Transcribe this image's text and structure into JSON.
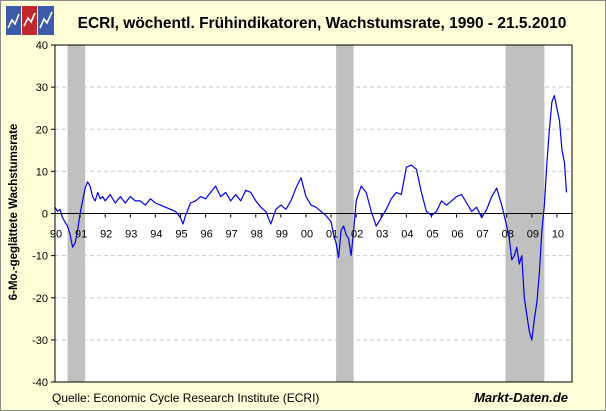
{
  "colors": {
    "background": "#fefed9",
    "plot_background": "#ffffff",
    "recession_shading": "#c0c0c0",
    "series_line": "#0000ee",
    "grid": "#c8c8c8",
    "logo_red": "#c1272d",
    "logo_blue": "#3b5ba9"
  },
  "logo": {
    "icon": "market-data-logo-icon"
  },
  "footer": {
    "source": "Quelle: Economic Cycle Research Institute (ECRI)",
    "brand": "Markt-Daten.de"
  },
  "chart_data": {
    "type": "line",
    "title": "ECRI, wöchentl. Frühindikatoren, Wachstumsrate, 1990 - 21.5.2010",
    "xlabel": "",
    "ylabel": "6-Mo.-geglättete Wachstumsrate",
    "xlim": [
      1990.0,
      2010.6
    ],
    "ylim": [
      -40,
      40
    ],
    "y_ticks": [
      -40,
      -30,
      -20,
      -10,
      0,
      10,
      20,
      30,
      40
    ],
    "x_ticks": [
      {
        "x": 1990,
        "label": "90"
      },
      {
        "x": 1991,
        "label": "91"
      },
      {
        "x": 1992,
        "label": "92"
      },
      {
        "x": 1993,
        "label": "93"
      },
      {
        "x": 1994,
        "label": "94"
      },
      {
        "x": 1995,
        "label": "95"
      },
      {
        "x": 1996,
        "label": "96"
      },
      {
        "x": 1997,
        "label": "97"
      },
      {
        "x": 1998,
        "label": "98"
      },
      {
        "x": 1999,
        "label": "99"
      },
      {
        "x": 2000,
        "label": "00"
      },
      {
        "x": 2001,
        "label": "01"
      },
      {
        "x": 2002,
        "label": "02"
      },
      {
        "x": 2003,
        "label": "03"
      },
      {
        "x": 2004,
        "label": "04"
      },
      {
        "x": 2005,
        "label": "05"
      },
      {
        "x": 2006,
        "label": "06"
      },
      {
        "x": 2007,
        "label": "07"
      },
      {
        "x": 2008,
        "label": "08"
      },
      {
        "x": 2009,
        "label": "09"
      },
      {
        "x": 2010,
        "label": "10"
      }
    ],
    "grid": true,
    "legend": "none",
    "recession_bands": [
      [
        1990.5,
        1991.2
      ],
      [
        2001.2,
        2001.9
      ],
      [
        2007.95,
        2009.5
      ]
    ],
    "series": [
      {
        "x": [
          1990.0,
          1990.1,
          1990.2,
          1990.3,
          1990.4,
          1990.5,
          1990.6,
          1990.7,
          1990.8,
          1990.9,
          1991.0,
          1991.1,
          1991.2,
          1991.3,
          1991.4,
          1991.5,
          1991.6,
          1991.7,
          1991.8,
          1991.9,
          1992.0,
          1992.2,
          1992.4,
          1992.6,
          1992.8,
          1993.0,
          1993.2,
          1993.4,
          1993.6,
          1993.8,
          1994.0,
          1994.2,
          1994.4,
          1994.6,
          1994.8,
          1995.0,
          1995.1,
          1995.2,
          1995.4,
          1995.6,
          1995.8,
          1996.0,
          1996.2,
          1996.4,
          1996.6,
          1996.8,
          1997.0,
          1997.2,
          1997.4,
          1997.6,
          1997.8,
          1998.0,
          1998.2,
          1998.4,
          1998.6,
          1998.8,
          1999.0,
          1999.2,
          1999.4,
          1999.6,
          1999.8,
          2000.0,
          2000.2,
          2000.4,
          2000.6,
          2000.8,
          2001.0,
          2001.1,
          2001.2,
          2001.3,
          2001.4,
          2001.5,
          2001.6,
          2001.7,
          2001.8,
          2001.9,
          2002.0,
          2002.2,
          2002.4,
          2002.6,
          2002.8,
          2003.0,
          2003.2,
          2003.4,
          2003.6,
          2003.8,
          2004.0,
          2004.2,
          2004.4,
          2004.6,
          2004.8,
          2005.0,
          2005.2,
          2005.4,
          2005.6,
          2005.8,
          2006.0,
          2006.2,
          2006.4,
          2006.6,
          2006.8,
          2007.0,
          2007.2,
          2007.4,
          2007.6,
          2007.8,
          2008.0,
          2008.1,
          2008.2,
          2008.3,
          2008.4,
          2008.5,
          2008.6,
          2008.7,
          2008.8,
          2008.9,
          2009.0,
          2009.1,
          2009.2,
          2009.3,
          2009.4,
          2009.5,
          2009.6,
          2009.7,
          2009.8,
          2009.9,
          2010.0,
          2010.1,
          2010.2,
          2010.3,
          2010.38
        ],
        "y": [
          1.5,
          0.5,
          1.0,
          -1.0,
          -2.0,
          -3.0,
          -5.0,
          -8.0,
          -7.0,
          -4.0,
          0.0,
          3.0,
          6.0,
          7.5,
          6.5,
          4.0,
          3.0,
          5.0,
          3.5,
          4.0,
          3.0,
          4.5,
          2.5,
          4.0,
          2.5,
          4.0,
          3.0,
          3.0,
          2.0,
          3.5,
          2.5,
          2.0,
          1.5,
          1.0,
          0.5,
          -1.0,
          -2.5,
          -0.5,
          2.5,
          3.0,
          4.0,
          3.5,
          5.0,
          6.5,
          4.0,
          5.0,
          3.0,
          4.5,
          3.0,
          5.5,
          5.0,
          3.0,
          1.5,
          0.5,
          -2.5,
          1.0,
          2.0,
          1.0,
          3.0,
          6.0,
          8.5,
          4.0,
          2.0,
          1.5,
          0.5,
          -0.5,
          -2.0,
          -5.0,
          -7.0,
          -10.5,
          -4.0,
          -3.0,
          -5.0,
          -6.0,
          -10.0,
          -4.0,
          3.0,
          6.5,
          5.0,
          0.5,
          -3.0,
          -1.0,
          1.0,
          3.5,
          5.0,
          4.5,
          11.0,
          11.5,
          10.5,
          5.0,
          0.5,
          -0.5,
          0.5,
          3.0,
          2.0,
          3.0,
          4.0,
          4.5,
          2.5,
          0.5,
          1.5,
          -1.0,
          1.0,
          4.0,
          6.0,
          2.0,
          -3.0,
          -6.0,
          -11.0,
          -10.0,
          -8.0,
          -12.0,
          -10.0,
          -20.0,
          -24.0,
          -28.0,
          -30.0,
          -25.0,
          -21.0,
          -14.0,
          -4.0,
          2.0,
          12.0,
          20.0,
          26.5,
          28.0,
          25.0,
          22.0,
          15.0,
          12.0,
          5.0
        ]
      }
    ]
  }
}
